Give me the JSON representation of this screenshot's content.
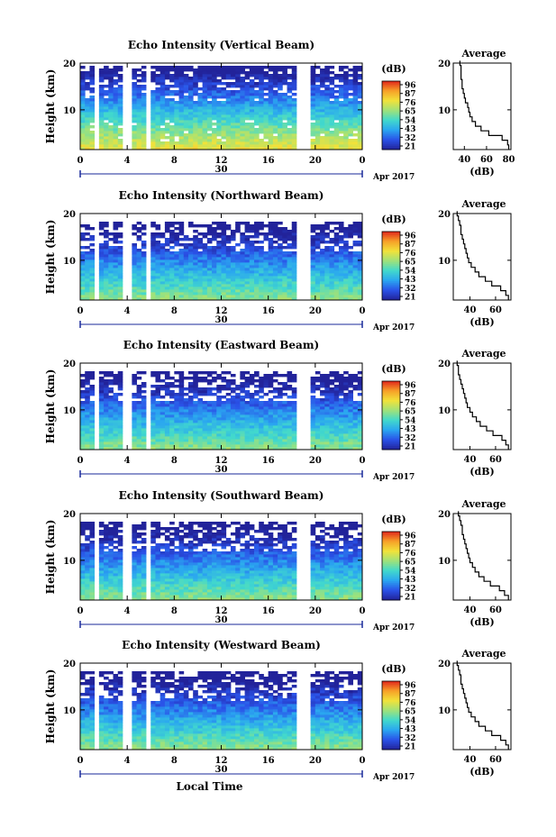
{
  "chart_data": [
    {
      "type": "heatmap",
      "title": "Echo Intensity (Vertical Beam)",
      "ylabel": "Height (km)",
      "colorbar_label": "(dB)",
      "colorbar_ticks": [
        "96",
        "87",
        "76",
        "65",
        "54",
        "43",
        "32",
        "21"
      ],
      "x_ticks": [
        "0",
        "4",
        "8",
        "12",
        "16",
        "20",
        "0"
      ],
      "xlim": [
        0,
        24
      ],
      "y_ticks": [
        "20",
        "10"
      ],
      "ylim": [
        1.5,
        20
      ],
      "date_day": "30",
      "date_month": "Apr 2017",
      "profile": {
        "title": "Average",
        "xlabel": "(dB)",
        "x_ticks": [
          "40",
          "60",
          "80"
        ],
        "xlim": [
          30,
          82
        ],
        "y_ticks": [
          "20",
          "10"
        ],
        "heights": [
          2,
          3,
          4,
          5,
          6,
          7,
          8,
          9,
          10,
          11,
          12,
          13,
          14,
          15,
          16,
          17,
          18,
          19,
          20
        ],
        "values": [
          80,
          79,
          74,
          62,
          55,
          50,
          47,
          45,
          44,
          43,
          41,
          40,
          39,
          38,
          38,
          37,
          37,
          37,
          36
        ]
      }
    },
    {
      "type": "heatmap",
      "title": "Echo Intensity (Northward Beam)",
      "ylabel": "Height (km)",
      "colorbar_label": "(dB)",
      "colorbar_ticks": [
        "96",
        "87",
        "76",
        "65",
        "54",
        "43",
        "32",
        "21"
      ],
      "x_ticks": [
        "0",
        "4",
        "8",
        "12",
        "16",
        "20",
        "0"
      ],
      "xlim": [
        0,
        24
      ],
      "y_ticks": [
        "20",
        "10"
      ],
      "ylim": [
        1.5,
        20
      ],
      "date_day": "30",
      "date_month": "Apr 2017",
      "profile": {
        "title": "Average",
        "xlabel": "(dB)",
        "x_ticks": [
          "40",
          "60"
        ],
        "xlim": [
          27,
          72
        ],
        "y_ticks": [
          "20",
          "10"
        ],
        "heights": [
          2,
          3,
          4,
          5,
          6,
          7,
          8,
          9,
          10,
          11,
          12,
          13,
          14,
          15,
          16,
          17,
          18,
          19,
          20
        ],
        "values": [
          70,
          68,
          64,
          57,
          52,
          47,
          44,
          41,
          39,
          38,
          37,
          36,
          35,
          34,
          33,
          33,
          32,
          31,
          30
        ]
      }
    },
    {
      "type": "heatmap",
      "title": "Echo Intensity (Eastward Beam)",
      "ylabel": "Height (km)",
      "colorbar_label": "(dB)",
      "colorbar_ticks": [
        "96",
        "87",
        "76",
        "65",
        "54",
        "43",
        "32",
        "21"
      ],
      "x_ticks": [
        "0",
        "4",
        "8",
        "12",
        "16",
        "20",
        "0"
      ],
      "xlim": [
        0,
        24
      ],
      "y_ticks": [
        "20",
        "10"
      ],
      "ylim": [
        1.5,
        20
      ],
      "date_day": "30",
      "date_month": "Apr 2017",
      "profile": {
        "title": "Average",
        "xlabel": "(dB)",
        "x_ticks": [
          "40",
          "60"
        ],
        "xlim": [
          27,
          72
        ],
        "y_ticks": [
          "20",
          "10"
        ],
        "heights": [
          2,
          3,
          4,
          5,
          6,
          7,
          8,
          9,
          10,
          11,
          12,
          13,
          14,
          15,
          16,
          17,
          18,
          19,
          20
        ],
        "values": [
          70,
          68,
          65,
          58,
          53,
          48,
          45,
          42,
          40,
          38,
          37,
          36,
          35,
          34,
          33,
          32,
          31,
          31,
          30
        ]
      }
    },
    {
      "type": "heatmap",
      "title": "Echo Intensity (Southward Beam)",
      "ylabel": "Height (km)",
      "colorbar_label": "(dB)",
      "colorbar_ticks": [
        "96",
        "87",
        "76",
        "65",
        "54",
        "43",
        "32",
        "21"
      ],
      "x_ticks": [
        "0",
        "4",
        "8",
        "12",
        "16",
        "20",
        "0"
      ],
      "xlim": [
        0,
        24
      ],
      "y_ticks": [
        "20",
        "10"
      ],
      "ylim": [
        1.5,
        20
      ],
      "date_day": "30",
      "date_month": "Apr 2017",
      "profile": {
        "title": "Average",
        "xlabel": "(dB)",
        "x_ticks": [
          "40",
          "60"
        ],
        "xlim": [
          27,
          72
        ],
        "y_ticks": [
          "20",
          "10"
        ],
        "heights": [
          2,
          3,
          4,
          5,
          6,
          7,
          8,
          9,
          10,
          11,
          12,
          13,
          14,
          15,
          16,
          17,
          18,
          19,
          20
        ],
        "values": [
          70,
          67,
          63,
          56,
          51,
          47,
          44,
          42,
          40,
          39,
          38,
          37,
          36,
          35,
          34,
          34,
          33,
          32,
          31
        ]
      }
    },
    {
      "type": "heatmap",
      "title": "Echo Intensity (Westward Beam)",
      "ylabel": "Height (km)",
      "colorbar_label": "(dB)",
      "colorbar_ticks": [
        "96",
        "87",
        "76",
        "65",
        "54",
        "43",
        "32",
        "21"
      ],
      "x_ticks": [
        "0",
        "4",
        "8",
        "12",
        "16",
        "20",
        "0"
      ],
      "xlim": [
        0,
        24
      ],
      "y_ticks": [
        "20",
        "10"
      ],
      "ylim": [
        1.5,
        20
      ],
      "date_day": "30",
      "date_month": "Apr 2017",
      "xlabel": "Local Time",
      "profile": {
        "title": "Average",
        "xlabel": "(dB)",
        "x_ticks": [
          "40",
          "60"
        ],
        "xlim": [
          27,
          72
        ],
        "y_ticks": [
          "20",
          "10"
        ],
        "heights": [
          2,
          3,
          4,
          5,
          6,
          7,
          8,
          9,
          10,
          11,
          12,
          13,
          14,
          15,
          16,
          17,
          18,
          19,
          20
        ],
        "values": [
          70,
          68,
          64,
          57,
          52,
          47,
          44,
          41,
          39,
          38,
          37,
          36,
          35,
          34,
          33,
          33,
          32,
          31,
          30
        ]
      }
    }
  ],
  "colors": {
    "colormap": [
      "#22239a",
      "#2a52e8",
      "#2aa6f0",
      "#42d9cc",
      "#9fe27a",
      "#f1e23a",
      "#f7a128",
      "#e0261c"
    ],
    "gap_fill": "#ffffff",
    "date_axis": "#1a2a9a"
  },
  "data_gaps_hours": [
    [
      1.2,
      1.5
    ],
    [
      3.8,
      4.2
    ],
    [
      5.6,
      5.9
    ],
    [
      18.6,
      19.4
    ]
  ]
}
